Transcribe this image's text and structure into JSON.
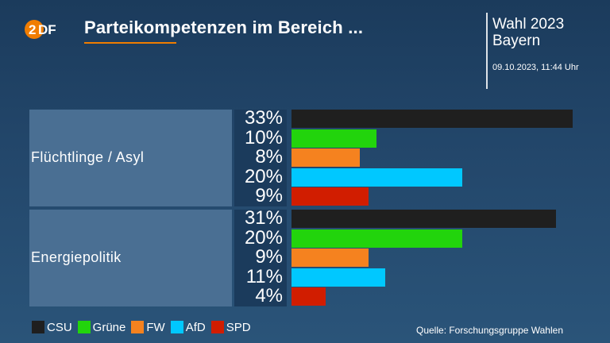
{
  "header": {
    "logo_text": "ZDF",
    "title": "Parteikompetenzen im Bereich ...",
    "election_line1": "Wahl 2023",
    "election_line2": "Bayern",
    "timestamp": "09.10.2023, 11:44 Uhr"
  },
  "colors": {
    "CSU": "#1f1f1f",
    "Grüne": "#22d40c",
    "FW": "#f5821f",
    "AfD": "#00c8ff",
    "SPD": "#d11d00",
    "accent": "#f07d00"
  },
  "chart_data": {
    "type": "bar",
    "orientation": "horizontal",
    "categories": [
      "Flüchtlinge / Asyl",
      "Energiepolitik"
    ],
    "series": [
      {
        "name": "CSU",
        "values": [
          33,
          31
        ]
      },
      {
        "name": "Grüne",
        "values": [
          10,
          20
        ]
      },
      {
        "name": "FW",
        "values": [
          8,
          9
        ]
      },
      {
        "name": "AfD",
        "values": [
          20,
          11
        ]
      },
      {
        "name": "SPD",
        "values": [
          9,
          4
        ]
      }
    ],
    "value_labels": [
      [
        "33%",
        "10%",
        "8%",
        "20%",
        "9%"
      ],
      [
        "31%",
        "20%",
        "9%",
        "11%",
        "4%"
      ]
    ],
    "unit": "%",
    "xlim": [
      0,
      33
    ],
    "legend_position": "bottom-left"
  },
  "legend": [
    {
      "label": "CSU",
      "color": "#1f1f1f"
    },
    {
      "label": "Grüne",
      "color": "#22d40c"
    },
    {
      "label": "FW",
      "color": "#f5821f"
    },
    {
      "label": "AfD",
      "color": "#00c8ff"
    },
    {
      "label": "SPD",
      "color": "#d11d00"
    }
  ],
  "source": "Quelle: Forschungsgruppe Wahlen"
}
